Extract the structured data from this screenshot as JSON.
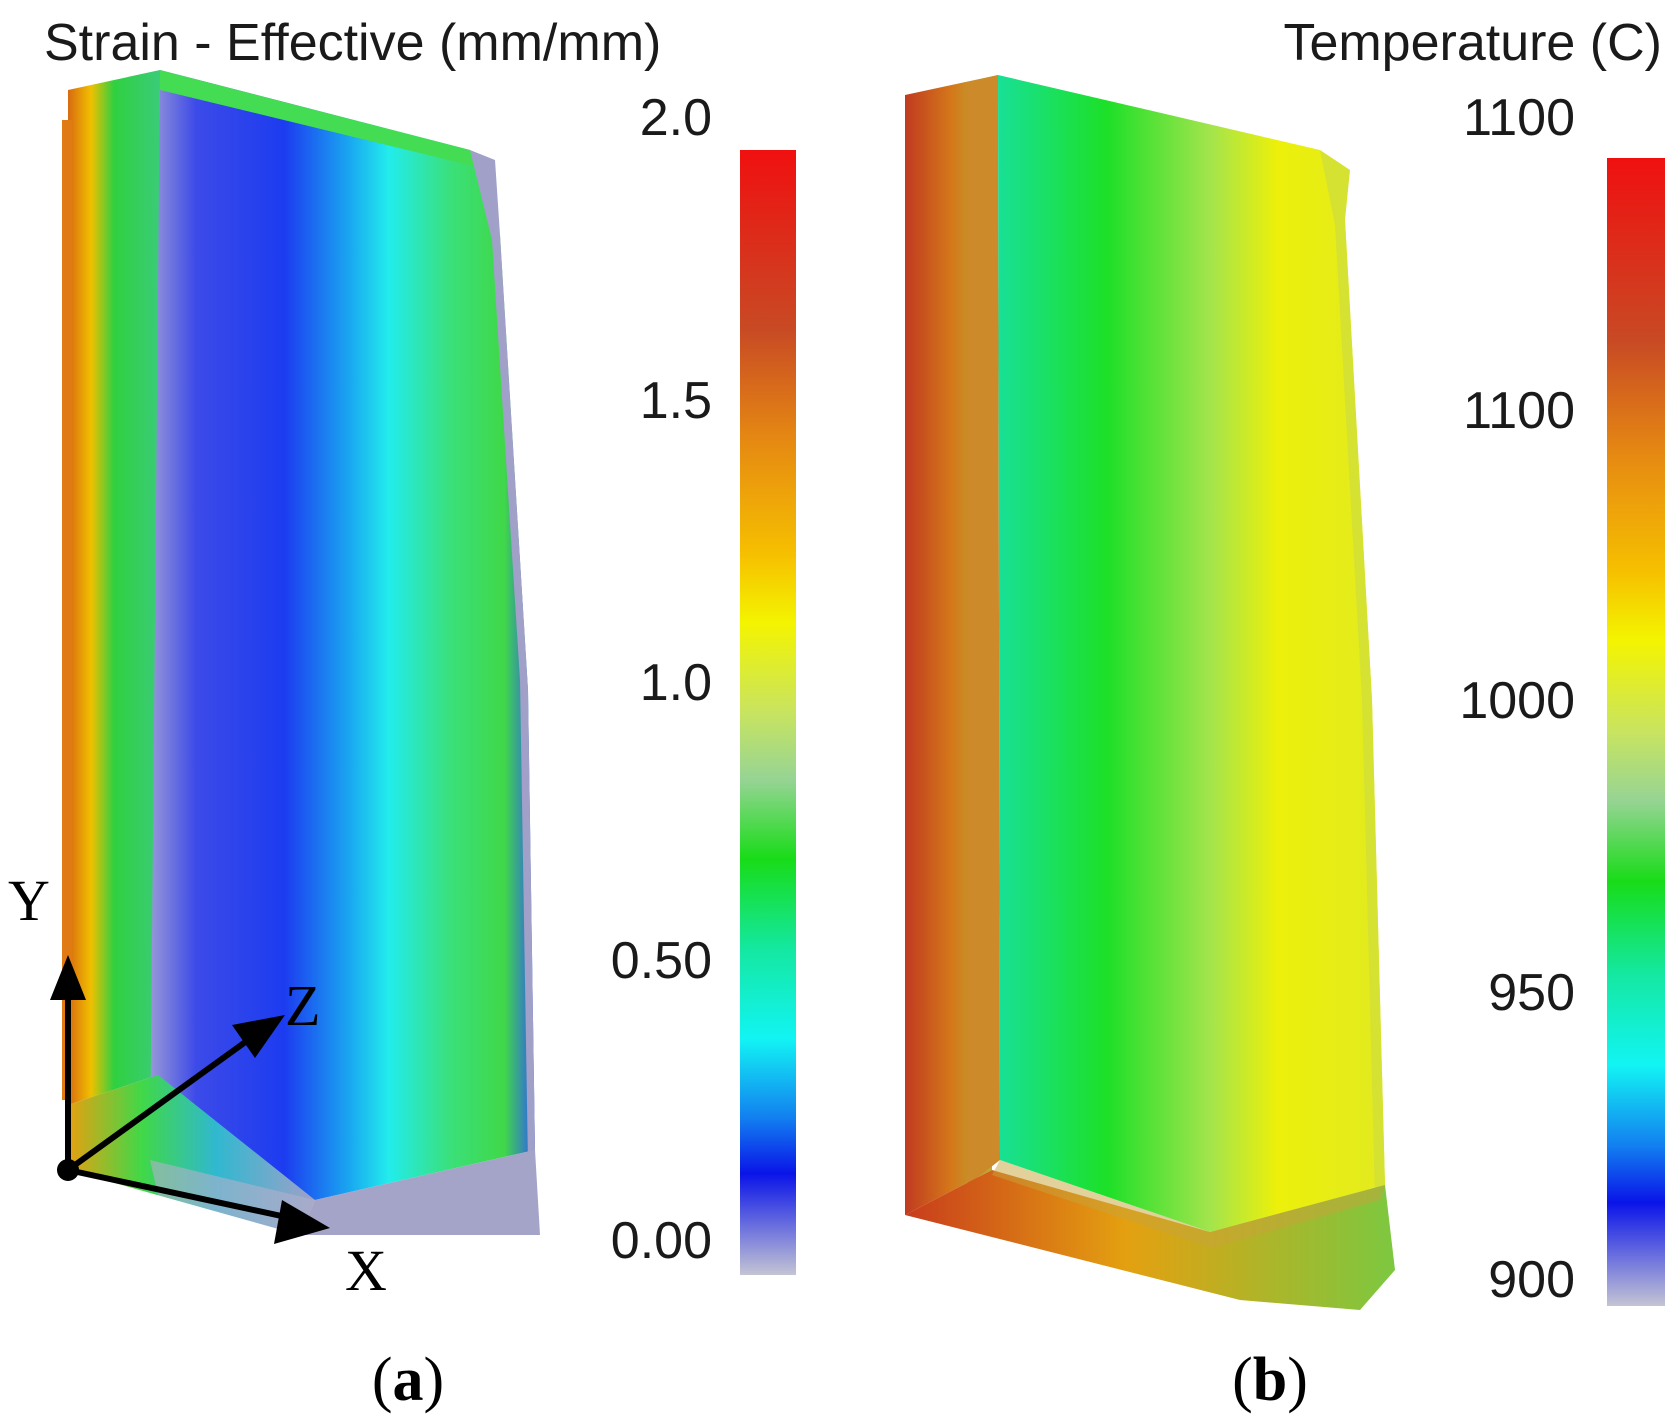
{
  "panels": [
    {
      "caption_open": "(",
      "caption_letter": "a",
      "caption_close": ")",
      "title": "Strain - Effective (mm/mm)",
      "quantity": "effective strain",
      "unit": "mm/mm",
      "colorbar_ticks": [
        "2.0",
        "1.5",
        "1.0",
        "0.50",
        "0.00"
      ],
      "coordinate_axes": {
        "y_label": "Y",
        "z_label": "Z",
        "x_label": "X"
      }
    },
    {
      "caption_open": "(",
      "caption_letter": "b",
      "caption_close": ")",
      "title": "Temperature (C)",
      "quantity": "temperature",
      "unit": "C",
      "colorbar_ticks": [
        "1100",
        "1100",
        "1000",
        "950",
        "900"
      ]
    }
  ],
  "colormap": [
    "#e01010",
    "#d45020",
    "#e88a10",
    "#f5b800",
    "#f2f200",
    "#c8e850",
    "#9ed690",
    "#20e020",
    "#10e890",
    "#10f0f0",
    "#1090f0",
    "#0a10e8",
    "#b8b8d0"
  ]
}
